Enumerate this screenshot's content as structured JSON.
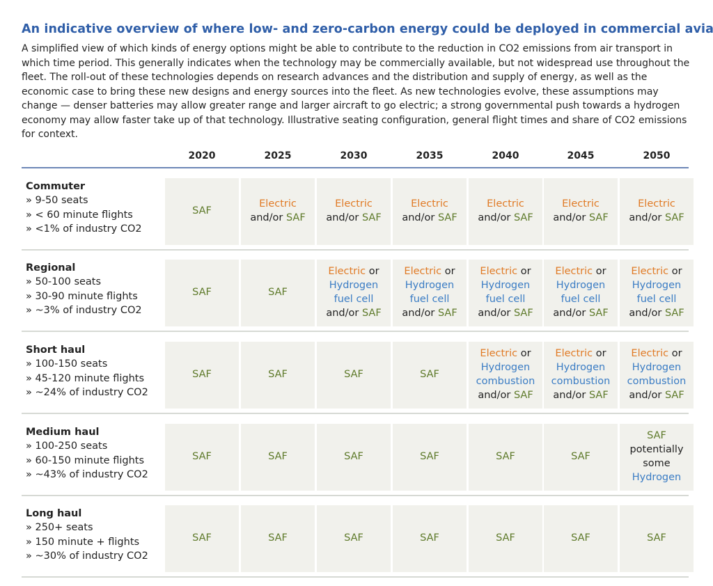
{
  "title": "An indicative overview of where low- and zero-carbon energy could be deployed in commercial aviation",
  "intro": "A simplified view of which kinds of energy options might be able to contribute to the reduction in CO2 emissions from air transport in which time period. This generally indicates when the technology may be commercially available, but not widespread use throughout the fleet. The roll-out of these technologies depends on research advances and the distribution and supply of energy, as well as the economic case to bring these new designs and energy sources into the fleet. As new technologies evolve, these assumptions may change — denser batteries may allow greater range and larger aircraft to go electric; a strong governmental push towards a hydrogen economy may allow faster take up of that technology. Illustrative seating configuration, general flight times and share of CO2 emissions for context.",
  "years": [
    "2020",
    "2025",
    "2030",
    "2035",
    "2040",
    "2045",
    "2050"
  ],
  "colors": {
    "saf": "#5e7a2a",
    "electric": "#e07a25",
    "hydrogen": "#3a7cc4",
    "cell_bg": "#f1f1ec",
    "title": "#2f5ea8"
  },
  "rows": [
    {
      "name": "Commuter",
      "details": [
        "» 9-50 seats",
        "» < 60 minute flights",
        "» <1% of industry CO2"
      ],
      "cells": [
        [
          [
            {
              "t": "SAF",
              "c": "saf"
            }
          ]
        ],
        [
          [
            {
              "t": "Electric",
              "c": "el"
            }
          ],
          [
            {
              "t": "and/or ",
              "c": "txt"
            },
            {
              "t": "SAF",
              "c": "saf"
            }
          ]
        ],
        [
          [
            {
              "t": "Electric",
              "c": "el"
            }
          ],
          [
            {
              "t": "and/or ",
              "c": "txt"
            },
            {
              "t": "SAF",
              "c": "saf"
            }
          ]
        ],
        [
          [
            {
              "t": "Electric",
              "c": "el"
            }
          ],
          [
            {
              "t": "and/or ",
              "c": "txt"
            },
            {
              "t": "SAF",
              "c": "saf"
            }
          ]
        ],
        [
          [
            {
              "t": "Electric",
              "c": "el"
            }
          ],
          [
            {
              "t": "and/or ",
              "c": "txt"
            },
            {
              "t": "SAF",
              "c": "saf"
            }
          ]
        ],
        [
          [
            {
              "t": "Electric",
              "c": "el"
            }
          ],
          [
            {
              "t": "and/or ",
              "c": "txt"
            },
            {
              "t": "SAF",
              "c": "saf"
            }
          ]
        ],
        [
          [
            {
              "t": "Electric",
              "c": "el"
            }
          ],
          [
            {
              "t": "and/or ",
              "c": "txt"
            },
            {
              "t": "SAF",
              "c": "saf"
            }
          ]
        ]
      ]
    },
    {
      "name": "Regional",
      "details": [
        "» 50-100 seats",
        "» 30-90 minute flights",
        "» ~3% of industry CO2"
      ],
      "cells": [
        [
          [
            {
              "t": "SAF",
              "c": "saf"
            }
          ]
        ],
        [
          [
            {
              "t": "SAF",
              "c": "saf"
            }
          ]
        ],
        [
          [
            {
              "t": "Electric",
              "c": "el"
            },
            {
              "t": " or",
              "c": "txt"
            }
          ],
          [
            {
              "t": "Hydrogen",
              "c": "h2"
            }
          ],
          [
            {
              "t": "fuel cell",
              "c": "h2"
            }
          ],
          [
            {
              "t": "and/or ",
              "c": "txt"
            },
            {
              "t": "SAF",
              "c": "saf"
            }
          ]
        ],
        [
          [
            {
              "t": "Electric",
              "c": "el"
            },
            {
              "t": " or",
              "c": "txt"
            }
          ],
          [
            {
              "t": "Hydrogen",
              "c": "h2"
            }
          ],
          [
            {
              "t": "fuel cell",
              "c": "h2"
            }
          ],
          [
            {
              "t": "and/or ",
              "c": "txt"
            },
            {
              "t": "SAF",
              "c": "saf"
            }
          ]
        ],
        [
          [
            {
              "t": "Electric",
              "c": "el"
            },
            {
              "t": " or",
              "c": "txt"
            }
          ],
          [
            {
              "t": "Hydrogen",
              "c": "h2"
            }
          ],
          [
            {
              "t": "fuel cell",
              "c": "h2"
            }
          ],
          [
            {
              "t": "and/or ",
              "c": "txt"
            },
            {
              "t": "SAF",
              "c": "saf"
            }
          ]
        ],
        [
          [
            {
              "t": "Electric",
              "c": "el"
            },
            {
              "t": " or",
              "c": "txt"
            }
          ],
          [
            {
              "t": "Hydrogen",
              "c": "h2"
            }
          ],
          [
            {
              "t": "fuel cell",
              "c": "h2"
            }
          ],
          [
            {
              "t": "and/or ",
              "c": "txt"
            },
            {
              "t": "SAF",
              "c": "saf"
            }
          ]
        ],
        [
          [
            {
              "t": "Electric",
              "c": "el"
            },
            {
              "t": " or",
              "c": "txt"
            }
          ],
          [
            {
              "t": "Hydrogen",
              "c": "h2"
            }
          ],
          [
            {
              "t": "fuel cell",
              "c": "h2"
            }
          ],
          [
            {
              "t": "and/or ",
              "c": "txt"
            },
            {
              "t": "SAF",
              "c": "saf"
            }
          ]
        ]
      ]
    },
    {
      "name": "Short haul",
      "details": [
        "» 100-150 seats",
        "» 45-120 minute flights",
        "» ~24% of industry CO2"
      ],
      "cells": [
        [
          [
            {
              "t": "SAF",
              "c": "saf"
            }
          ]
        ],
        [
          [
            {
              "t": "SAF",
              "c": "saf"
            }
          ]
        ],
        [
          [
            {
              "t": "SAF",
              "c": "saf"
            }
          ]
        ],
        [
          [
            {
              "t": "SAF",
              "c": "saf"
            }
          ]
        ],
        [
          [
            {
              "t": "Electric",
              "c": "el"
            },
            {
              "t": " or",
              "c": "txt"
            }
          ],
          [
            {
              "t": "Hydrogen",
              "c": "h2"
            }
          ],
          [
            {
              "t": "combustion",
              "c": "h2"
            }
          ],
          [
            {
              "t": "and/or ",
              "c": "txt"
            },
            {
              "t": "SAF",
              "c": "saf"
            }
          ]
        ],
        [
          [
            {
              "t": "Electric",
              "c": "el"
            },
            {
              "t": " or",
              "c": "txt"
            }
          ],
          [
            {
              "t": "Hydrogen",
              "c": "h2"
            }
          ],
          [
            {
              "t": "combustion",
              "c": "h2"
            }
          ],
          [
            {
              "t": "and/or ",
              "c": "txt"
            },
            {
              "t": "SAF",
              "c": "saf"
            }
          ]
        ],
        [
          [
            {
              "t": "Electric",
              "c": "el"
            },
            {
              "t": " or",
              "c": "txt"
            }
          ],
          [
            {
              "t": "Hydrogen",
              "c": "h2"
            }
          ],
          [
            {
              "t": "combustion",
              "c": "h2"
            }
          ],
          [
            {
              "t": "and/or ",
              "c": "txt"
            },
            {
              "t": "SAF",
              "c": "saf"
            }
          ]
        ]
      ]
    },
    {
      "name": "Medium haul",
      "details": [
        "» 100-250 seats",
        "» 60-150 minute flights",
        "» ~43% of industry CO2"
      ],
      "cells": [
        [
          [
            {
              "t": "SAF",
              "c": "saf"
            }
          ]
        ],
        [
          [
            {
              "t": "SAF",
              "c": "saf"
            }
          ]
        ],
        [
          [
            {
              "t": "SAF",
              "c": "saf"
            }
          ]
        ],
        [
          [
            {
              "t": "SAF",
              "c": "saf"
            }
          ]
        ],
        [
          [
            {
              "t": "SAF",
              "c": "saf"
            }
          ]
        ],
        [
          [
            {
              "t": "SAF",
              "c": "saf"
            }
          ]
        ],
        [
          [
            {
              "t": "SAF",
              "c": "saf"
            }
          ],
          [
            {
              "t": "potentially",
              "c": "txt"
            }
          ],
          [
            {
              "t": "some",
              "c": "txt"
            }
          ],
          [
            {
              "t": "Hydrogen",
              "c": "h2"
            }
          ]
        ]
      ]
    },
    {
      "name": "Long haul",
      "details": [
        "» 250+ seats",
        "» 150 minute + flights",
        "» ~30% of industry CO2"
      ],
      "cells": [
        [
          [
            {
              "t": "SAF",
              "c": "saf"
            }
          ]
        ],
        [
          [
            {
              "t": "SAF",
              "c": "saf"
            }
          ]
        ],
        [
          [
            {
              "t": "SAF",
              "c": "saf"
            }
          ]
        ],
        [
          [
            {
              "t": "SAF",
              "c": "saf"
            }
          ]
        ],
        [
          [
            {
              "t": "SAF",
              "c": "saf"
            }
          ]
        ],
        [
          [
            {
              "t": "SAF",
              "c": "saf"
            }
          ]
        ],
        [
          [
            {
              "t": "SAF",
              "c": "saf"
            }
          ]
        ]
      ]
    }
  ]
}
